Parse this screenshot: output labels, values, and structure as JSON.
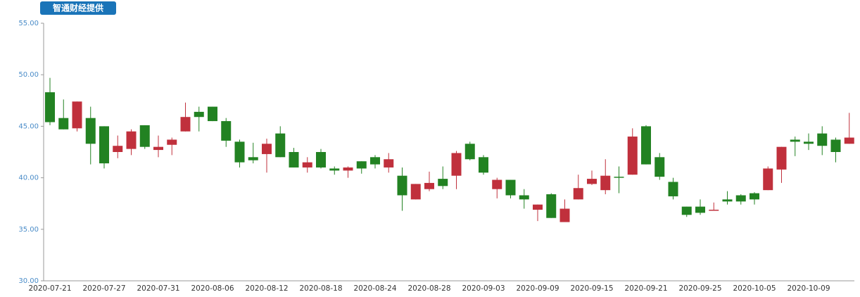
{
  "chart_data": {
    "type": "candlestick",
    "badge": "智通财经提供",
    "categories": [
      "2020-07-21",
      null,
      null,
      null,
      "2020-07-27",
      null,
      null,
      null,
      "2020-07-31",
      null,
      null,
      null,
      "2020-08-06",
      null,
      null,
      null,
      "2020-08-12",
      null,
      null,
      null,
      "2020-08-18",
      null,
      null,
      null,
      "2020-08-24",
      null,
      null,
      null,
      "2020-08-28",
      null,
      null,
      null,
      "2020-09-03",
      null,
      null,
      null,
      "2020-09-09",
      null,
      null,
      null,
      "2020-09-15",
      null,
      null,
      null,
      "2020-09-21",
      null,
      null,
      null,
      "2020-09-25",
      null,
      null,
      null,
      "2020-10-05",
      null,
      null,
      null,
      "2020-10-09",
      null,
      null,
      null
    ],
    "open": [
      48.3,
      45.8,
      44.8,
      45.8,
      45.0,
      42.5,
      42.8,
      45.1,
      42.7,
      43.2,
      44.5,
      46.4,
      46.9,
      45.5,
      43.5,
      42.0,
      42.3,
      44.3,
      42.5,
      41.0,
      42.5,
      40.9,
      40.7,
      41.6,
      42.0,
      41.0,
      40.2,
      37.9,
      38.9,
      39.9,
      40.2,
      43.3,
      42.0,
      38.9,
      39.8,
      38.3,
      36.9,
      38.4,
      35.7,
      37.9,
      39.4,
      38.8,
      40.1,
      40.3,
      45.0,
      42.0,
      39.6,
      37.2,
      37.2,
      36.8,
      37.9,
      38.3,
      38.5,
      38.8,
      40.8,
      43.7,
      43.5,
      44.3,
      43.7,
      43.3
    ],
    "high": [
      49.7,
      47.6,
      47.4,
      46.9,
      45.0,
      44.1,
      44.7,
      45.1,
      44.1,
      43.9,
      47.3,
      46.9,
      46.9,
      45.8,
      43.7,
      43.4,
      43.8,
      45.0,
      42.9,
      42.0,
      42.8,
      41.1,
      41.1,
      41.6,
      42.2,
      42.4,
      41.0,
      39.4,
      40.6,
      41.1,
      42.6,
      43.5,
      42.2,
      40.0,
      39.8,
      38.9,
      37.4,
      38.5,
      37.9,
      40.3,
      40.7,
      41.8,
      41.1,
      44.8,
      45.1,
      42.4,
      40.0,
      37.2,
      37.9,
      37.6,
      38.7,
      38.4,
      38.6,
      41.1,
      43.0,
      44.0,
      44.3,
      45.0,
      43.9,
      46.3
    ],
    "low": [
      45.1,
      44.7,
      44.5,
      41.3,
      40.9,
      41.9,
      42.2,
      42.8,
      42.0,
      42.2,
      44.5,
      44.5,
      45.5,
      43.0,
      41.0,
      41.4,
      40.5,
      42.0,
      41.0,
      40.5,
      40.9,
      40.3,
      40.0,
      40.4,
      40.9,
      40.5,
      36.8,
      37.9,
      38.7,
      38.9,
      38.9,
      41.7,
      40.3,
      38.0,
      38.0,
      37.0,
      35.8,
      36.1,
      35.7,
      37.9,
      39.3,
      38.4,
      38.5,
      40.3,
      41.3,
      39.8,
      37.9,
      36.2,
      36.4,
      36.8,
      37.4,
      37.4,
      37.4,
      38.8,
      39.5,
      42.1,
      42.7,
      42.2,
      41.5,
      43.3
    ],
    "close": [
      45.4,
      44.7,
      47.4,
      43.3,
      41.4,
      43.1,
      44.5,
      43.0,
      43.0,
      43.7,
      45.9,
      45.9,
      45.5,
      43.6,
      41.5,
      41.7,
      43.3,
      42.0,
      41.0,
      41.5,
      41.0,
      40.7,
      41.0,
      40.9,
      41.3,
      41.8,
      38.3,
      39.4,
      39.5,
      39.2,
      42.4,
      41.8,
      40.5,
      39.8,
      38.3,
      37.9,
      37.4,
      36.1,
      37.0,
      39.0,
      39.9,
      40.2,
      40.0,
      44.0,
      41.3,
      40.1,
      38.2,
      36.4,
      36.6,
      36.9,
      37.7,
      37.7,
      37.9,
      40.9,
      43.0,
      43.5,
      43.3,
      43.1,
      42.5,
      43.9
    ],
    "up_color": "#c0303c",
    "down_color": "#228222",
    "ylim": [
      30,
      55
    ],
    "yticks": [
      {
        "value": 30,
        "label": "30.00"
      },
      {
        "value": 35,
        "label": "35.00"
      },
      {
        "value": 40,
        "label": "40.00"
      },
      {
        "value": 45,
        "label": "45.00"
      },
      {
        "value": 50,
        "label": "50.00"
      },
      {
        "value": 55,
        "label": "55.00"
      }
    ],
    "grid": false
  }
}
